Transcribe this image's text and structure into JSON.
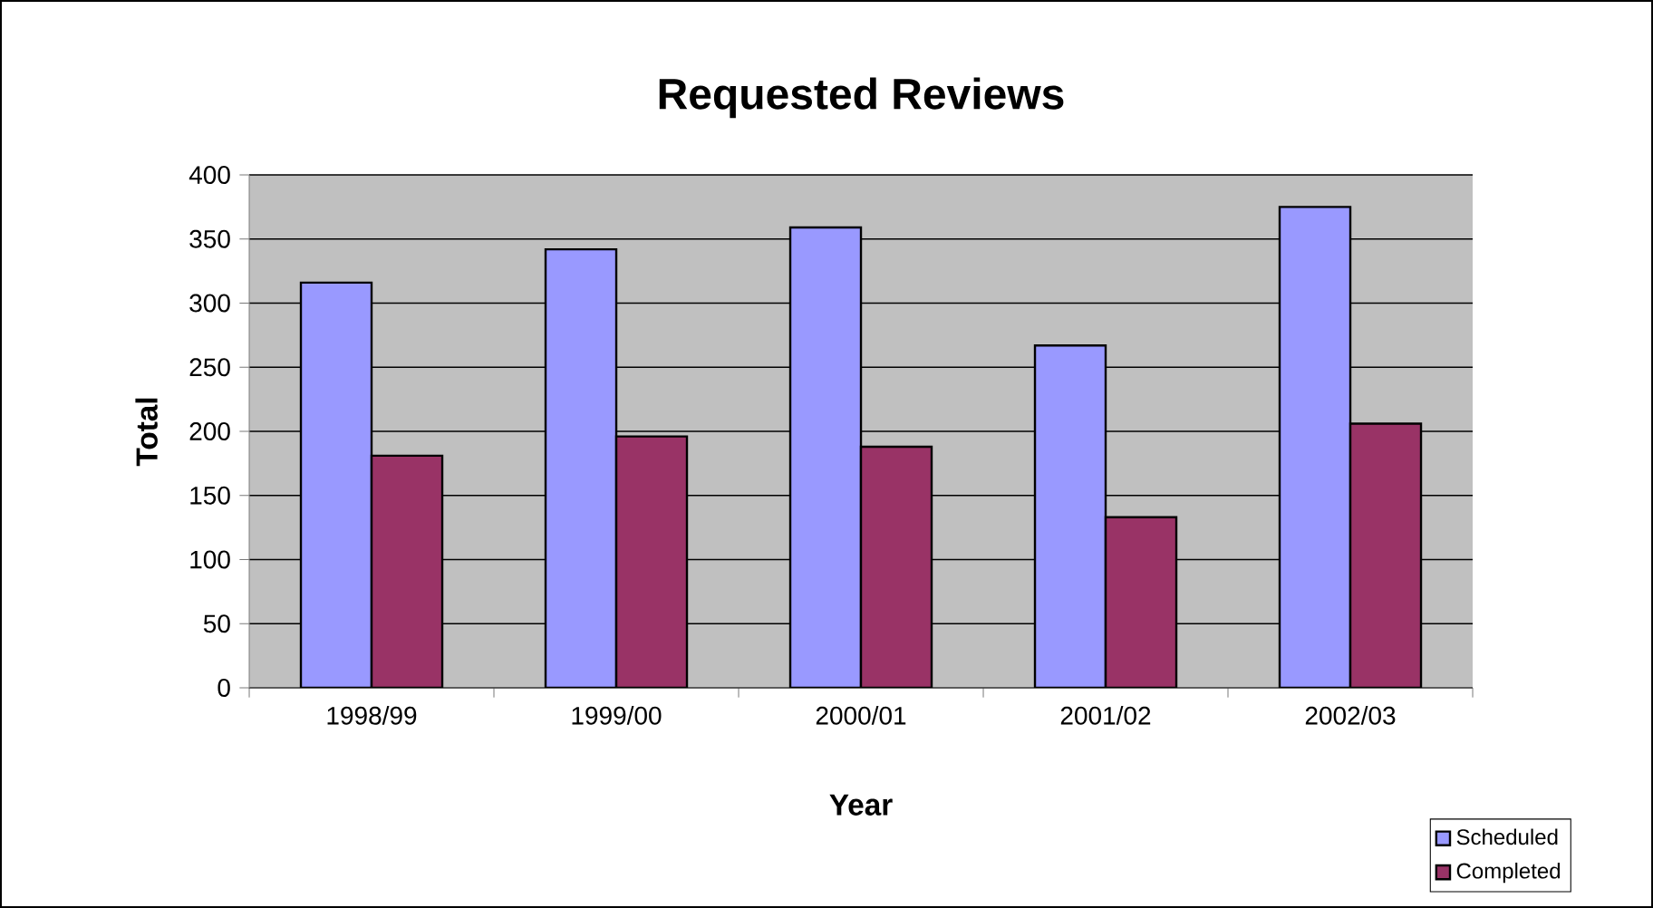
{
  "chart_data": {
    "type": "bar",
    "title": "Requested Reviews",
    "xlabel": "Year",
    "ylabel": "Total",
    "categories": [
      "1998/99",
      "1999/00",
      "2000/01",
      "2001/02",
      "2002/03"
    ],
    "series": [
      {
        "name": "Scheduled",
        "color": "#9999ff",
        "values": [
          316,
          342,
          359,
          267,
          375
        ]
      },
      {
        "name": "Completed",
        "color": "#993366",
        "values": [
          181,
          196,
          188,
          133,
          206
        ]
      }
    ],
    "ylim": [
      0,
      400
    ],
    "yticks": [
      0,
      50,
      100,
      150,
      200,
      250,
      300,
      350,
      400
    ],
    "grid": "y",
    "legend": "bottom right"
  }
}
